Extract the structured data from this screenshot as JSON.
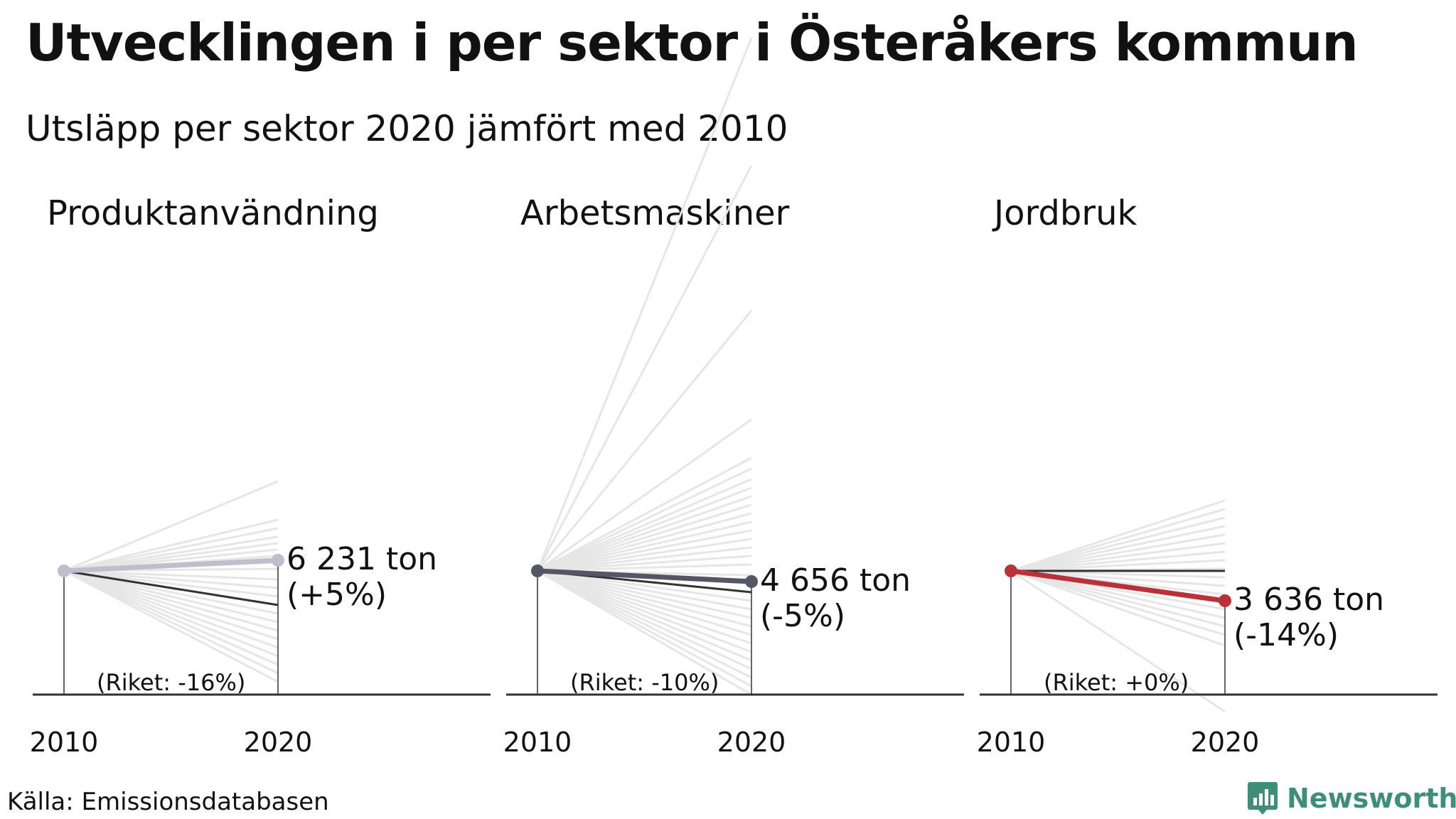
{
  "title": "Utvecklingen i per sektor i Österåkers kommun",
  "subtitle": "Utsläpp per sektor 2020 jämfört med 2010",
  "source": "Källa: Emissionsdatabasen",
  "logo": {
    "text": "Newsworthy",
    "color": "#3e8e7a"
  },
  "chart_data": [
    {
      "type": "line",
      "title": "Produktanvändning",
      "x": [
        "2010",
        "2020"
      ],
      "highlight": {
        "color": "#c0bdcc",
        "change_pct": 5,
        "value_label": "6 231 ton",
        "change_label": "(+5%)"
      },
      "riket": {
        "change_pct": -16,
        "label": "(Riket: -16%)"
      },
      "background_changes_pct": [
        42,
        24,
        20,
        16,
        13,
        10,
        7,
        4,
        1,
        -4,
        -8,
        -12,
        -16,
        -20,
        -24,
        -28,
        -32,
        -36,
        -40,
        -44,
        -48,
        -52
      ]
    },
    {
      "type": "line",
      "title": "Arbetsmaskiner",
      "x": [
        "2010",
        "2020"
      ],
      "highlight": {
        "color": "#555566",
        "change_pct": -5,
        "value_label": "4 656 ton",
        "change_label": "(-5%)"
      },
      "riket": {
        "change_pct": -10,
        "label": "(Riket: -10%)"
      },
      "background_changes_pct": [
        250,
        190,
        122,
        71,
        53,
        48,
        43,
        39,
        35,
        31,
        27,
        23,
        19,
        15,
        11,
        7,
        3,
        -2,
        -6,
        -10,
        -14,
        -18,
        -22,
        -26,
        -30,
        -34,
        -38,
        -42,
        -46,
        -50,
        -54,
        -58
      ]
    },
    {
      "type": "line",
      "title": "Jordbruk",
      "x": [
        "2010",
        "2020"
      ],
      "highlight": {
        "color": "#b83238",
        "change_pct": -14,
        "value_label": "3 636 ton",
        "change_label": "(-14%)"
      },
      "riket": {
        "change_pct": 0,
        "label": "(Riket: +0%)"
      },
      "background_changes_pct": [
        33,
        29,
        25,
        21,
        17,
        13,
        9,
        5,
        1,
        -3,
        -7,
        -11,
        -15,
        -18,
        -22,
        -26,
        -30,
        -35,
        -66
      ]
    }
  ]
}
